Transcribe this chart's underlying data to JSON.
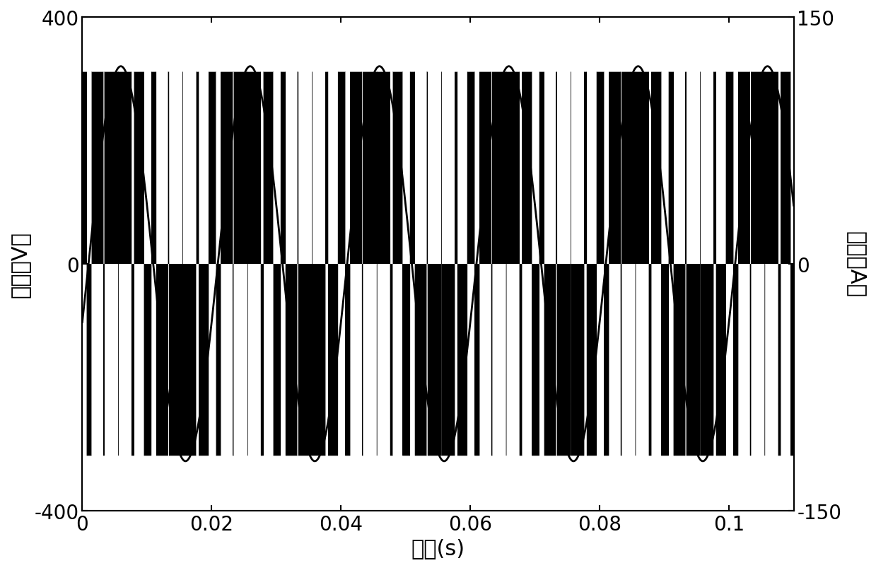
{
  "title": "",
  "xlabel": "时间(s)",
  "ylabel_left": "电压（V）",
  "ylabel_right": "电流（A）",
  "xlim": [
    0,
    0.11
  ],
  "ylim_left": [
    -400,
    400
  ],
  "ylim_right": [
    -150,
    150
  ],
  "xticks": [
    0,
    0.02,
    0.04,
    0.06,
    0.08,
    0.1
  ],
  "yticks_left": [
    -400,
    0,
    400
  ],
  "yticks_right": [
    -150,
    0,
    150
  ],
  "fund_freq": 50,
  "pwm_freq": 450,
  "voltage_amp": 311,
  "current_amp": 120,
  "figsize": [
    12.39,
    8.04
  ],
  "dpi": 100,
  "line_color": "#000000",
  "background_color": "#ffffff",
  "font_size_labels": 22,
  "font_size_ticks": 20,
  "phase_lag": 0.3
}
